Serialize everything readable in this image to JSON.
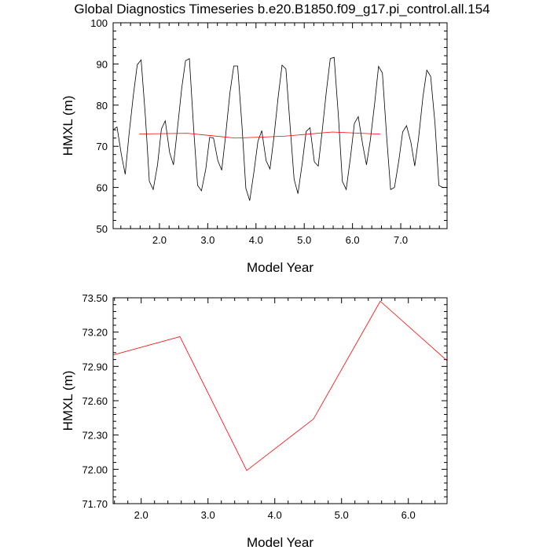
{
  "title": "Global Diagnostics Timeseries b.e20.B1850.f09_g17.pi_control.all.154",
  "colors": {
    "monthly": "#000000",
    "annual": "#ff0000"
  },
  "chart_data": [
    {
      "type": "line",
      "xlabel": "Model Year",
      "ylabel": "HMXL (m)",
      "xlim": [
        1.04,
        7.96
      ],
      "ylim": [
        50,
        100
      ],
      "x_ticks": [
        2.0,
        3.0,
        4.0,
        5.0,
        6.0,
        7.0
      ],
      "x_tick_labels": [
        "2.0",
        "3.0",
        "4.0",
        "5.0",
        "6.0",
        "7.0"
      ],
      "y_ticks": [
        50,
        60,
        70,
        80,
        90,
        100
      ],
      "y_tick_labels": [
        "50",
        "60",
        "70",
        "80",
        "90",
        "100"
      ],
      "series": [
        {
          "color": "#000000",
          "x": [
            1.04,
            1.12,
            1.21,
            1.29,
            1.37,
            1.46,
            1.54,
            1.62,
            1.71,
            1.79,
            1.87,
            1.96,
            2.04,
            2.12,
            2.21,
            2.29,
            2.37,
            2.46,
            2.54,
            2.62,
            2.71,
            2.79,
            2.87,
            2.96,
            3.04,
            3.12,
            3.21,
            3.29,
            3.37,
            3.46,
            3.54,
            3.62,
            3.71,
            3.79,
            3.87,
            3.96,
            4.04,
            4.12,
            4.21,
            4.29,
            4.37,
            4.46,
            4.54,
            4.62,
            4.71,
            4.79,
            4.87,
            4.96,
            5.04,
            5.12,
            5.21,
            5.29,
            5.37,
            5.46,
            5.54,
            5.62,
            5.71,
            5.79,
            5.87,
            5.96,
            6.04,
            6.12,
            6.21,
            6.29,
            6.37,
            6.46,
            6.54,
            6.62,
            6.71,
            6.79,
            6.87,
            6.96,
            7.04,
            7.12,
            7.21,
            7.29,
            7.37,
            7.46,
            7.54,
            7.62,
            7.71,
            7.79,
            7.87,
            7.96
          ],
          "values": [
            74.0,
            74.7,
            68.0,
            63.2,
            73.0,
            82.5,
            89.8,
            91.0,
            77.0,
            61.5,
            59.5,
            65.5,
            74.2,
            76.2,
            68.5,
            65.5,
            74.0,
            84.0,
            90.8,
            91.3,
            74.0,
            60.5,
            59.2,
            64.5,
            72.2,
            72.0,
            66.5,
            64.2,
            72.5,
            83.0,
            89.5,
            89.5,
            75.0,
            59.8,
            56.8,
            64.0,
            71.2,
            73.8,
            66.5,
            64.5,
            72.0,
            82.0,
            89.7,
            88.8,
            74.5,
            62.0,
            58.5,
            66.0,
            73.6,
            74.5,
            66.2,
            65.2,
            73.5,
            83.5,
            91.3,
            91.6,
            77.0,
            61.5,
            59.5,
            67.5,
            75.6,
            77.2,
            70.5,
            65.5,
            71.5,
            80.5,
            89.4,
            87.8,
            72.0,
            59.5,
            60.0,
            66.5,
            73.5,
            75.0,
            71.0,
            65.2,
            72.0,
            82.0,
            88.5,
            87.0,
            75.5,
            60.5,
            60.0,
            60.0
          ]
        },
        {
          "color": "#ff0000",
          "x": [
            1.58,
            2.58,
            3.58,
            4.58,
            5.58,
            6.58
          ],
          "values": [
            73.0,
            73.16,
            71.99,
            72.44,
            73.47,
            72.95
          ]
        }
      ]
    },
    {
      "type": "line",
      "xlabel": "Model Year",
      "ylabel": "HMXL (m)",
      "xlim": [
        1.58,
        6.58
      ],
      "ylim": [
        71.7,
        73.5
      ],
      "x_ticks": [
        2.0,
        3.0,
        4.0,
        5.0,
        6.0
      ],
      "x_tick_labels": [
        "2.0",
        "3.0",
        "4.0",
        "5.0",
        "6.0"
      ],
      "y_ticks": [
        71.7,
        72.0,
        72.3,
        72.6,
        72.9,
        73.2,
        73.5
      ],
      "y_tick_labels": [
        "71.70",
        "72.00",
        "72.30",
        "72.60",
        "72.90",
        "73.20",
        "73.50"
      ],
      "series": [
        {
          "color": "#ff0000",
          "x": [
            1.58,
            2.58,
            3.58,
            4.58,
            5.58,
            6.58
          ],
          "values": [
            73.0,
            73.16,
            71.99,
            72.44,
            73.47,
            72.95
          ]
        }
      ]
    }
  ]
}
